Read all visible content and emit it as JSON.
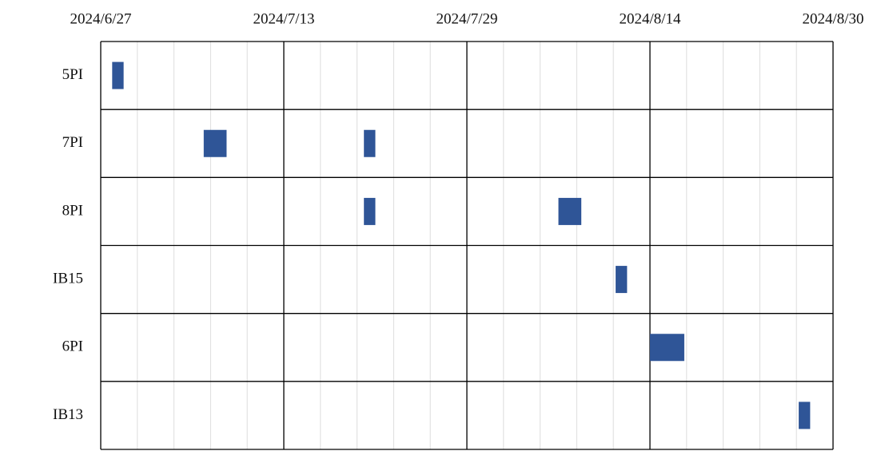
{
  "chart_data": {
    "type": "gantt",
    "categories": [
      "5PI",
      "7PI",
      "8PI",
      "IB15",
      "6PI",
      "IB13"
    ],
    "tasks": [
      {
        "category": "5PI",
        "start": "2024-06-28",
        "end": "2024-06-29"
      },
      {
        "category": "7PI",
        "start": "2024-07-06",
        "end": "2024-07-08"
      },
      {
        "category": "7PI",
        "start": "2024-07-20",
        "end": "2024-07-21"
      },
      {
        "category": "8PI",
        "start": "2024-07-20",
        "end": "2024-07-21"
      },
      {
        "category": "8PI",
        "start": "2024-08-06",
        "end": "2024-08-08"
      },
      {
        "category": "IB15",
        "start": "2024-08-11",
        "end": "2024-08-12"
      },
      {
        "category": "6PI",
        "start": "2024-08-14",
        "end": "2024-08-17"
      },
      {
        "category": "IB13",
        "start": "2024-08-27",
        "end": "2024-08-28"
      }
    ],
    "color": "#2f5597",
    "xlim": [
      "2024-06-27",
      "2024-08-30"
    ],
    "xticks": [
      {
        "value": "2024-06-27",
        "label": "2024/6/27"
      },
      {
        "value": "2024-07-13",
        "label": "2024/7/13"
      },
      {
        "value": "2024-07-29",
        "label": "2024/7/29"
      },
      {
        "value": "2024-08-14",
        "label": "2024/8/14"
      },
      {
        "value": "2024-08-30",
        "label": "2024/8/30"
      }
    ],
    "minor_grid_divisions": 5,
    "grid": true
  }
}
